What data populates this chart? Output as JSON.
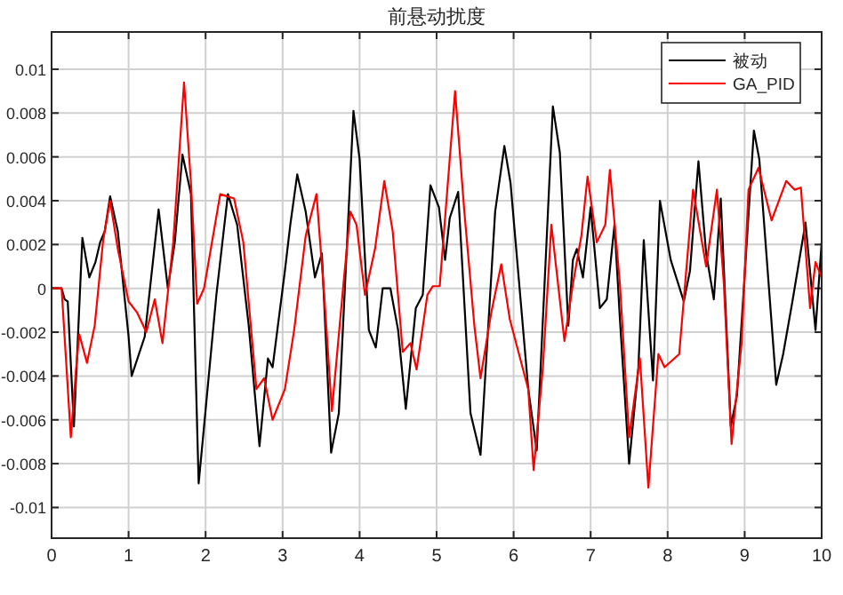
{
  "chart_data": {
    "type": "line",
    "title": "前悬动扰度",
    "xlim": [
      0,
      10
    ],
    "ylim": [
      -0.0114,
      0.0117
    ],
    "xticks": [
      0,
      1,
      2,
      3,
      4,
      5,
      6,
      7,
      8,
      9,
      10
    ],
    "yticks": [
      -0.01,
      -0.008,
      -0.006,
      -0.004,
      -0.002,
      0,
      0.002,
      0.004,
      0.006,
      0.008,
      0.01
    ],
    "grid": true,
    "legend": "top right",
    "series": [
      {
        "name": "被动",
        "color": "#000000",
        "x": [
          0,
          0.13,
          0.17,
          0.21,
          0.29,
          0.4,
          0.49,
          0.57,
          0.63,
          0.69,
          0.76,
          0.86,
          1.0,
          1.04,
          1.21,
          1.39,
          1.51,
          1.6,
          1.7,
          1.81,
          1.91,
          1.98,
          2.14,
          2.29,
          2.41,
          2.56,
          2.7,
          2.81,
          2.87,
          3.03,
          3.1,
          3.19,
          3.3,
          3.42,
          3.51,
          3.63,
          3.73,
          3.92,
          4.0,
          4.12,
          4.21,
          4.3,
          4.4,
          4.5,
          4.6,
          4.73,
          4.82,
          4.92,
          5.03,
          5.11,
          5.17,
          5.28,
          5.44,
          5.57,
          5.76,
          5.88,
          5.96,
          6.19,
          6.3,
          6.51,
          6.6,
          6.71,
          6.77,
          6.82,
          6.9,
          7.0,
          7.12,
          7.21,
          7.31,
          7.38,
          7.5,
          7.62,
          7.69,
          7.81,
          7.9,
          8.04,
          8.21,
          8.29,
          8.4,
          8.5,
          8.6,
          8.69,
          8.82,
          8.9,
          9.12,
          9.19,
          9.41,
          9.5,
          9.62,
          9.79,
          9.92,
          10.0
        ],
        "values": [
          0,
          0,
          -0.0005,
          -0.0006,
          -0.0063,
          0.0023,
          0.0005,
          0.0012,
          0.0021,
          0.0026,
          0.0042,
          0.0026,
          -0.0022,
          -0.004,
          -0.0022,
          0.0036,
          0,
          0.0021,
          0.0061,
          0.0043,
          -0.0089,
          -0.0063,
          -0.0003,
          0.0043,
          0.0029,
          -0.0017,
          -0.0072,
          -0.0032,
          -0.0036,
          0.0008,
          0.0029,
          0.0052,
          0.0035,
          0.0005,
          0.0016,
          -0.0075,
          -0.0057,
          0.0081,
          0.0059,
          -0.0019,
          -0.0027,
          0,
          0,
          -0.0019,
          -0.0055,
          -0.0009,
          -0.0003,
          0.0047,
          0.0037,
          0.0013,
          0.0032,
          0.0044,
          -0.0057,
          -0.0076,
          0.0035,
          0.0065,
          0.0048,
          -0.0046,
          -0.0074,
          0.0083,
          0.0062,
          -0.0017,
          0.0013,
          0.0018,
          0.0005,
          0.0037,
          -0.0009,
          -0.0005,
          0.0029,
          -0.0014,
          -0.008,
          -0.0036,
          0.0022,
          -0.0042,
          0.004,
          0.0013,
          -0.0006,
          0.0008,
          0.0058,
          0.0016,
          -0.0005,
          0.0041,
          -0.0063,
          -0.0049,
          0.0072,
          0.0059,
          -0.0044,
          -0.003,
          -0.0006,
          0.003,
          -0.0019,
          0.0021
        ]
      },
      {
        "name": "GA_PID",
        "color": "#ff0000",
        "x": [
          0,
          0.13,
          0.25,
          0.32,
          0.36,
          0.46,
          0.56,
          0.67,
          0.76,
          0.86,
          1.0,
          1.11,
          1.23,
          1.34,
          1.44,
          1.58,
          1.72,
          1.81,
          1.89,
          1.98,
          2.19,
          2.37,
          2.49,
          2.66,
          2.76,
          2.87,
          3.03,
          3.15,
          3.3,
          3.44,
          3.54,
          3.64,
          3.79,
          3.88,
          3.96,
          4.07,
          4.2,
          4.32,
          4.43,
          4.56,
          4.66,
          4.74,
          4.88,
          4.95,
          5.04,
          5.24,
          5.36,
          5.49,
          5.57,
          5.71,
          5.84,
          5.95,
          6.19,
          6.26,
          6.38,
          6.49,
          6.66,
          6.77,
          6.88,
          6.96,
          7.08,
          7.19,
          7.25,
          7.38,
          7.5,
          7.64,
          7.75,
          7.88,
          7.96,
          8.15,
          8.33,
          8.5,
          8.64,
          8.73,
          8.83,
          8.96,
          9.05,
          9.18,
          9.35,
          9.54,
          9.65,
          9.73,
          9.85,
          9.92,
          10.0
        ],
        "values": [
          0,
          0,
          -0.0068,
          -0.0036,
          -0.0021,
          -0.0034,
          -0.0017,
          0.0022,
          0.004,
          0.0018,
          -0.0006,
          -0.0011,
          -0.002,
          -0.0005,
          -0.0025,
          0.0021,
          0.0094,
          0.0048,
          -0.0007,
          0,
          0.0043,
          0.0041,
          0.0021,
          -0.0046,
          -0.0041,
          -0.006,
          -0.0046,
          -0.0019,
          0.0024,
          0.0043,
          -0.0003,
          -0.0056,
          0.0002,
          0.0035,
          0.0029,
          -0.0003,
          0.0018,
          0.0049,
          0.0026,
          -0.0029,
          -0.0025,
          -0.0037,
          -0.0003,
          0.0001,
          0.0001,
          0.009,
          0.0035,
          -0.0017,
          -0.0041,
          -0.0011,
          0.0011,
          -0.0014,
          -0.0046,
          -0.0083,
          -0.0036,
          0.0029,
          -0.0024,
          0.0002,
          0.0024,
          0.0051,
          0.0021,
          0.0029,
          0.0054,
          0.0002,
          -0.0068,
          -0.0032,
          -0.0091,
          -0.003,
          -0.0036,
          -0.003,
          0.0045,
          0.001,
          0.0045,
          0.0002,
          -0.0071,
          -0.0025,
          0.0045,
          0.0055,
          0.0031,
          0.0049,
          0.0045,
          0.0046,
          -0.0009,
          0.0012,
          0.0005
        ]
      }
    ]
  }
}
